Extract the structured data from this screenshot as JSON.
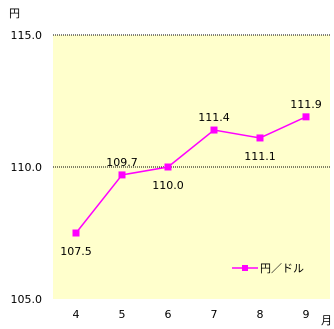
{
  "chart_data": {
    "type": "line",
    "title": "",
    "ylabel": "円",
    "xlabel": "月",
    "categories": [
      "4",
      "5",
      "6",
      "7",
      "8",
      "9"
    ],
    "series": [
      {
        "name": "円／ドル",
        "values": [
          107.5,
          109.7,
          110.0,
          111.4,
          111.1,
          111.9
        ],
        "color": "#ff00ff",
        "marker": "square"
      }
    ],
    "data_labels": [
      "107.5",
      "109.7",
      "110.0",
      "111.4",
      "111.1",
      "111.9"
    ],
    "ylim": [
      105.0,
      115.0
    ],
    "yticks": [
      "105.0",
      "110.0",
      "115.0"
    ],
    "grid": "dotted horizontal lines at 110.0 and 115.0",
    "legend_position": "bottom-right inside plot",
    "plot_background": "#ffffcc"
  }
}
